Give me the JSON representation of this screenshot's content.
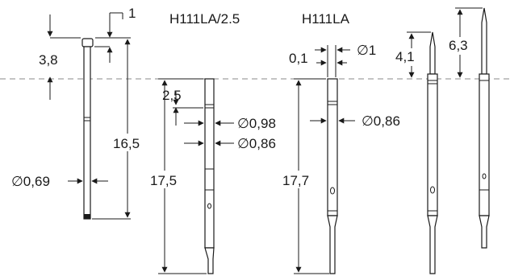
{
  "titles": {
    "probe_b": "H111LA/2.5",
    "probe_c": "H111LA"
  },
  "dimensions": {
    "a_top": "1",
    "a_tip": "3,8",
    "a_length": "16,5",
    "a_dia": "∅0,69",
    "b_step": "2,5",
    "b_dia_outer": "∅0,98",
    "b_dia_inner": "∅0,86",
    "b_length": "17,5",
    "c_step": "0,1",
    "c_dia_tip": "∅1",
    "c_length": "17,7",
    "c_dia": "∅0,86",
    "d_tip": "4,1",
    "e_tip": "6,3"
  },
  "colors": {
    "line": "#1a1a1a",
    "reference_line": "#8a8a8a",
    "background": "#ffffff"
  }
}
